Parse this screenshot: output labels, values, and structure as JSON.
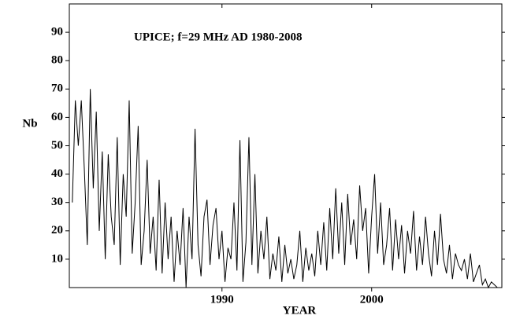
{
  "chart_data": {
    "type": "line",
    "title": "UPICE; f=29 MHz AD 1980-2008",
    "x_label": "YEAR",
    "y_label": "Nb",
    "xlim": [
      1979.8,
      2008.7
    ],
    "ylim": [
      0,
      100
    ],
    "xticks": [
      1990,
      2000
    ],
    "yticks": [
      10,
      20,
      30,
      40,
      50,
      60,
      70,
      80,
      90
    ],
    "color": "#000000",
    "x": [
      1980,
      1980.2,
      1980.4,
      1980.6,
      1980.8,
      1981,
      1981.2,
      1981.4,
      1981.6,
      1981.8,
      1982,
      1982.2,
      1982.4,
      1982.6,
      1982.8,
      1983,
      1983.2,
      1983.4,
      1983.6,
      1983.8,
      1984,
      1984.2,
      1984.4,
      1984.6,
      1984.8,
      1985,
      1985.2,
      1985.4,
      1985.6,
      1985.8,
      1986,
      1986.2,
      1986.4,
      1986.6,
      1986.8,
      1987,
      1987.2,
      1987.4,
      1987.6,
      1987.8,
      1988,
      1988.2,
      1988.4,
      1988.6,
      1988.8,
      1989,
      1989.2,
      1989.4,
      1989.6,
      1989.8,
      1990,
      1990.2,
      1990.4,
      1990.6,
      1990.8,
      1991,
      1991.2,
      1991.4,
      1991.6,
      1991.8,
      1992,
      1992.2,
      1992.4,
      1992.6,
      1992.8,
      1993,
      1993.2,
      1993.4,
      1993.6,
      1993.8,
      1994,
      1994.2,
      1994.4,
      1994.6,
      1994.8,
      1995,
      1995.2,
      1995.4,
      1995.6,
      1995.8,
      1996,
      1996.2,
      1996.4,
      1996.6,
      1996.8,
      1997,
      1997.2,
      1997.4,
      1997.6,
      1997.8,
      1998,
      1998.2,
      1998.4,
      1998.6,
      1998.8,
      1999,
      1999.2,
      1999.4,
      1999.6,
      1999.8,
      2000,
      2000.2,
      2000.4,
      2000.6,
      2000.8,
      2001,
      2001.2,
      2001.4,
      2001.6,
      2001.8,
      2002,
      2002.2,
      2002.4,
      2002.6,
      2002.8,
      2003,
      2003.2,
      2003.4,
      2003.6,
      2003.8,
      2004,
      2004.2,
      2004.4,
      2004.6,
      2004.8,
      2005,
      2005.2,
      2005.4,
      2005.6,
      2005.8,
      2006,
      2006.2,
      2006.4,
      2006.6,
      2006.8,
      2007,
      2007.2,
      2007.4,
      2007.6,
      2007.8,
      2008,
      2008.2,
      2008.4
    ],
    "values": [
      30,
      66,
      50,
      66,
      42,
      15,
      70,
      35,
      62,
      20,
      48,
      10,
      47,
      25,
      15,
      53,
      8,
      40,
      25,
      66,
      12,
      30,
      57,
      8,
      20,
      45,
      12,
      25,
      6,
      38,
      5,
      30,
      10,
      25,
      2,
      20,
      8,
      28,
      0,
      25,
      10,
      56,
      15,
      4,
      25,
      31,
      8,
      22,
      28,
      10,
      20,
      2,
      14,
      10,
      30,
      6,
      52,
      2,
      16,
      53,
      8,
      40,
      5,
      20,
      10,
      25,
      3,
      12,
      6,
      18,
      2,
      15,
      5,
      10,
      3,
      8,
      20,
      2,
      14,
      6,
      12,
      4,
      20,
      8,
      23,
      6,
      28,
      10,
      35,
      12,
      30,
      8,
      33,
      15,
      24,
      10,
      36,
      20,
      28,
      5,
      25,
      40,
      12,
      30,
      8,
      15,
      28,
      6,
      24,
      10,
      22,
      5,
      20,
      12,
      27,
      6,
      18,
      8,
      25,
      12,
      4,
      20,
      8,
      26,
      10,
      5,
      15,
      3,
      12,
      8,
      6,
      10,
      3,
      12,
      2,
      5,
      8,
      1,
      3,
      0,
      2,
      1,
      0
    ]
  }
}
